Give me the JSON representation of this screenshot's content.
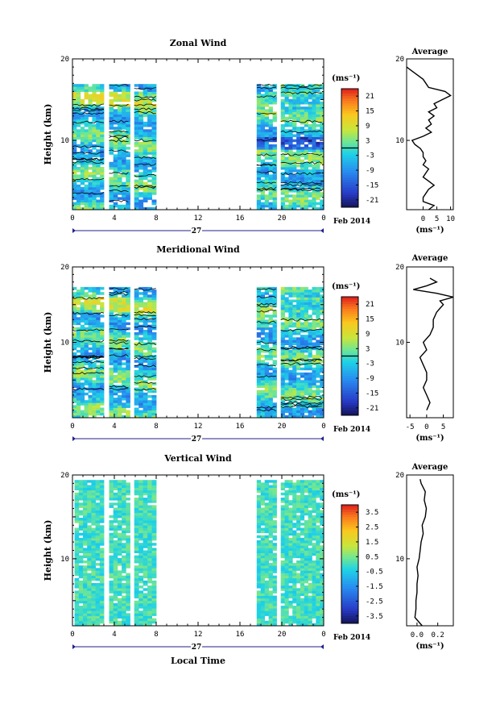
{
  "figure": {
    "x_axis_label": "Local Time",
    "date_day": "27",
    "date_month": "Feb 2014",
    "y_axis_label": "Height (km)",
    "average_title": "Average",
    "unit": "(ms⁻¹)"
  },
  "chart_data": [
    {
      "type": "heatmap",
      "title": "Zonal Wind",
      "ylabel": "Height (km)",
      "xlabel": "",
      "x_ticks": [
        "0",
        "4",
        "8",
        "12",
        "16",
        "20",
        "0"
      ],
      "x_range": [
        0,
        24
      ],
      "y_range": [
        1.5,
        20
      ],
      "y_ticks": [
        "20",
        "10"
      ],
      "x_columns_hours": [
        [
          0,
          3
        ],
        [
          3.5,
          5.5
        ],
        [
          5.9,
          8
        ],
        [
          17.6,
          19.5
        ],
        [
          19.9,
          24
        ]
      ],
      "y_top_km": 16.8,
      "colorbar": {
        "unit": "(ms⁻¹)",
        "ticks": [
          "21",
          "15",
          "9",
          "3",
          "-3",
          "-9",
          "-15",
          "-21"
        ],
        "range": [
          -24,
          24
        ],
        "zero_contour": 0
      },
      "profile": {
        "title": "Average",
        "x_ticks": [
          "0",
          "5",
          "10"
        ],
        "x_range": [
          -6,
          11
        ],
        "unit": "(ms⁻¹)",
        "heights_km": [
          1.5,
          2,
          2.5,
          3,
          3.5,
          4,
          4.5,
          5,
          5.5,
          6,
          6.5,
          7,
          7.5,
          8,
          8.5,
          9,
          9.5,
          10,
          10.5,
          11,
          11.5,
          12,
          12.5,
          13,
          13.5,
          14,
          14.5,
          15,
          15.5,
          16,
          16.5,
          17,
          17.5,
          18,
          18.5,
          19
        ],
        "values": [
          2,
          4,
          0,
          0,
          1,
          2,
          4,
          2,
          0,
          1,
          2,
          0,
          1,
          0,
          0,
          -1,
          -3,
          -4,
          0,
          3,
          1,
          3,
          2,
          4,
          2,
          5,
          4,
          7,
          10,
          8,
          2,
          1,
          0,
          -2,
          -4,
          -6
        ]
      }
    },
    {
      "type": "heatmap",
      "title": "Meridional Wind",
      "ylabel": "Height (km)",
      "xlabel": "",
      "x_ticks": [
        "0",
        "4",
        "8",
        "12",
        "16",
        "20",
        "0"
      ],
      "x_range": [
        0,
        24
      ],
      "y_range": [
        0,
        20
      ],
      "y_ticks": [
        "20",
        "10"
      ],
      "x_columns_hours": [
        [
          0,
          3
        ],
        [
          3.5,
          5.5
        ],
        [
          5.9,
          8
        ],
        [
          17.6,
          19.5
        ],
        [
          19.9,
          24
        ]
      ],
      "y_top_km": 17.2,
      "colorbar": {
        "unit": "(ms⁻¹)",
        "ticks": [
          "21",
          "15",
          "9",
          "3",
          "-3",
          "-9",
          "-15",
          "-21"
        ],
        "range": [
          -24,
          24
        ],
        "zero_contour": 0
      },
      "profile": {
        "title": "Average",
        "x_ticks": [
          "-5",
          "0",
          "5"
        ],
        "x_range": [
          -6,
          8
        ],
        "unit": "(ms⁻¹)",
        "heights_km": [
          1,
          2,
          3,
          4,
          5,
          6,
          7,
          8,
          9,
          10,
          11,
          12,
          13,
          14,
          14.5,
          15,
          15.5,
          16,
          16.5,
          17,
          17.5,
          18,
          18.5
        ],
        "values": [
          0,
          1,
          0,
          -1,
          0,
          0,
          -1,
          -2,
          0,
          -1,
          1,
          2,
          2,
          3,
          4,
          5,
          4,
          8,
          3,
          -4,
          0,
          3,
          1
        ]
      }
    },
    {
      "type": "heatmap",
      "title": "Vertical Wind",
      "ylabel": "Height (km)",
      "xlabel": "Local Time",
      "x_ticks": [
        "0",
        "4",
        "8",
        "12",
        "16",
        "20",
        "0"
      ],
      "x_range": [
        0,
        24
      ],
      "y_range": [
        2,
        20
      ],
      "y_ticks": [
        "20",
        "10"
      ],
      "x_columns_hours": [
        [
          0.2,
          3
        ],
        [
          3.5,
          5.5
        ],
        [
          5.9,
          8
        ],
        [
          17.6,
          19.5
        ],
        [
          19.9,
          24
        ]
      ],
      "y_top_km": 19.5,
      "colorbar": {
        "unit": "(ms⁻¹)",
        "ticks": [
          "3.5",
          "2.5",
          "1.5",
          "0.5",
          "-0.5",
          "-1.5",
          "-2.5",
          "-3.5"
        ],
        "range": [
          -4,
          4
        ]
      },
      "profile": {
        "title": "Average",
        "x_ticks": [
          "0.0",
          "0.2"
        ],
        "x_range": [
          -0.1,
          0.35
        ],
        "unit": "(ms⁻¹)",
        "heights_km": [
          2,
          3,
          4,
          5,
          6,
          7,
          8,
          9,
          10,
          11,
          12,
          13,
          14,
          15,
          16,
          17,
          18,
          19,
          19.5
        ],
        "values": [
          0.05,
          -0.02,
          -0.01,
          -0.01,
          0.0,
          0.0,
          0.01,
          0.0,
          0.02,
          0.03,
          0.04,
          0.06,
          0.05,
          0.08,
          0.09,
          0.07,
          0.08,
          0.04,
          0.03
        ]
      }
    }
  ]
}
